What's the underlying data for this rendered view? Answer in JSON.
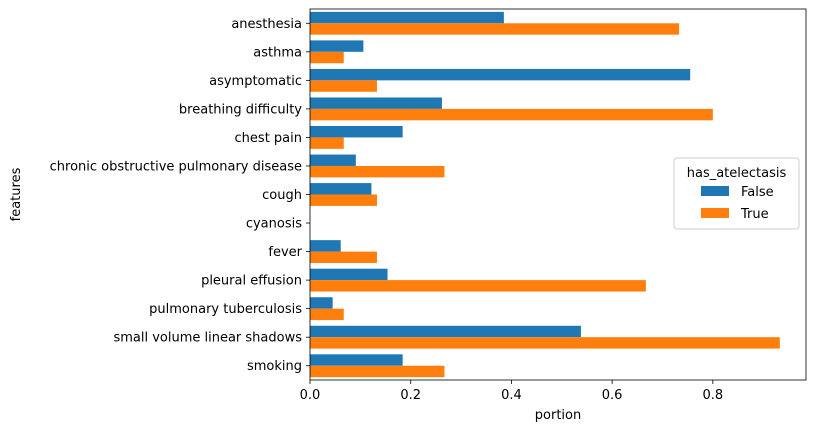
{
  "chart_data": {
    "type": "bar",
    "orientation": "horizontal",
    "categories": [
      "anesthesia",
      "asthma",
      "asymptomatic",
      "breathing difficulty",
      "chest pain",
      "chronic obstructive pulmonary disease",
      "cough",
      "cyanosis",
      "fever",
      "pleural effusion",
      "pulmonary tuberculosis",
      "small volume linear shadows",
      "smoking"
    ],
    "series": [
      {
        "name": "False",
        "color": "#1f77b4",
        "values": [
          0.385,
          0.106,
          0.755,
          0.262,
          0.184,
          0.091,
          0.122,
          0.0,
          0.061,
          0.154,
          0.045,
          0.538,
          0.184
        ]
      },
      {
        "name": "True",
        "color": "#ff7f0e",
        "values": [
          0.733,
          0.067,
          0.133,
          0.8,
          0.067,
          0.267,
          0.133,
          0.0,
          0.133,
          0.667,
          0.067,
          0.933,
          0.267
        ]
      }
    ],
    "xlabel": "portion",
    "ylabel": "features",
    "xlim": [
      0,
      0.985
    ],
    "xticks": [
      0.0,
      0.2,
      0.4,
      0.6,
      0.8
    ],
    "xtick_labels": [
      "0.0",
      "0.2",
      "0.4",
      "0.6",
      "0.8"
    ],
    "grid": false,
    "legend": {
      "title": "has_atelectasis",
      "placement": "center-right",
      "entries": [
        "False",
        "True"
      ]
    }
  }
}
